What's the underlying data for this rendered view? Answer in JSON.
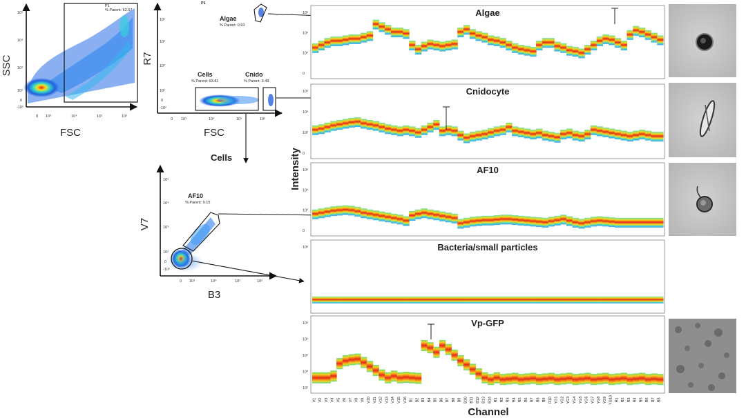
{
  "scatter_plots": {
    "ssc_fsc": {
      "x_label": "FSC",
      "y_label": "SSC",
      "gate_name": "P1",
      "gate_stat": "% Parent: 62.67",
      "y_ticks": [
        "10⁵",
        "10⁴",
        "10³",
        "10²",
        "0",
        "-10²"
      ],
      "x_ticks": [
        "0",
        "10³",
        "10⁴",
        "10⁵",
        "10⁶"
      ]
    },
    "r7_fsc": {
      "x_label": "FSC",
      "y_label": "R7",
      "plot_title": "P1",
      "gates": [
        {
          "name": "Algae",
          "stat": "% Parent: 0.93"
        },
        {
          "name": "Cells",
          "stat": "% Parent: 93.81"
        },
        {
          "name": "Cnido",
          "stat": "% Parent: 3.49"
        }
      ],
      "y_ticks": [
        "10⁵",
        "10⁴",
        "10³",
        "10²",
        "0",
        "-10²"
      ],
      "x_ticks": [
        "0",
        "10³",
        "10⁴",
        "10⁵",
        "10⁶"
      ]
    },
    "v7_b3": {
      "x_label": "B3",
      "y_label": "V7",
      "plot_title": "Cells",
      "gate_name": "AF10",
      "gate_stat": "% Parent: 9.15",
      "y_ticks": [
        "10⁵",
        "10⁴",
        "10³",
        "10²",
        "0",
        "-10²"
      ],
      "x_ticks": [
        "0",
        "10³",
        "10⁴",
        "10⁵",
        "10⁶"
      ]
    }
  },
  "spectra": {
    "y_axis_label": "Intensity",
    "x_axis_label": "Channel",
    "channels": [
      "V1",
      "V2",
      "V3",
      "V4",
      "V5",
      "V6",
      "V7",
      "V8",
      "V9",
      "V10",
      "V11",
      "V12",
      "V13",
      "V14",
      "V15",
      "V16",
      "B1",
      "B2",
      "B3",
      "B4",
      "B5",
      "B6",
      "B7",
      "B8",
      "B9",
      "B10",
      "B11",
      "B12",
      "B13",
      "B14",
      "R1",
      "R2",
      "R3",
      "R4",
      "R5",
      "R6",
      "R7",
      "R8",
      "R9",
      "R10",
      "YG1",
      "YG2",
      "YG3",
      "YG4",
      "YG5",
      "YG6",
      "YG7",
      "YG8",
      "YG9",
      "YG10",
      "R1",
      "R2",
      "R3",
      "R4",
      "R5",
      "R6",
      "R7",
      "R8"
    ],
    "panels": [
      {
        "name": "Algae",
        "tick_top": "10⁶",
        "ticks": [
          "10⁶",
          "10⁴",
          "10²",
          "0"
        ]
      },
      {
        "name": "Cnidocyte",
        "tick_top": "10⁶",
        "ticks": [
          "10⁶",
          "10⁴",
          "10²",
          "0"
        ]
      },
      {
        "name": "AF10",
        "tick_top": "10⁶",
        "ticks": [
          "10⁶",
          "10⁴",
          "10²",
          "0"
        ]
      },
      {
        "name": "Bacteria/small particles",
        "tick_top": "10⁶",
        "ticks": [
          "10⁶"
        ]
      },
      {
        "name": "Vp-GFP",
        "tick_top": "10⁶",
        "ticks": [
          "10⁶",
          "10⁵",
          "10⁴",
          "10³",
          "10²"
        ]
      }
    ]
  },
  "colors": {
    "density_low": "#1030c8",
    "density_mid": "#22c0ff",
    "density_high": "#e82020",
    "gate_line": "#111111"
  }
}
